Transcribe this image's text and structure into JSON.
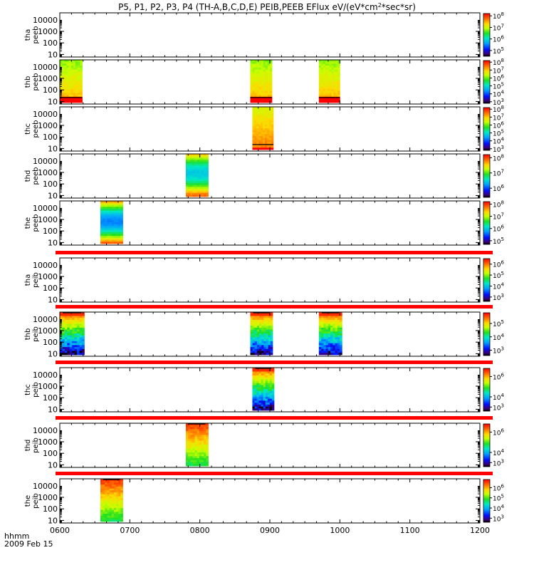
{
  "chart_data": {
    "type": "heatmap",
    "title": "P5, P1, P2, P3, P4 (TH-A,B,C,D,E) PEIB,PEEB EFlux eV/(eV*cm",
    "title_sup": "2",
    "title_end": "*sec*sr)",
    "x_label_top": "hhmm",
    "x_label_bottom": "2009 Feb 15",
    "x_ticks": [
      "0600",
      "0700",
      "0800",
      "0900",
      "1000",
      "1100",
      "1200"
    ],
    "x_range_hours": [
      6,
      12
    ],
    "y_scale": "log",
    "y_range": [
      6,
      40000
    ],
    "y_tick_labels": [
      "10",
      "100",
      "1000",
      "10000"
    ],
    "panels": [
      {
        "name": "tha peeb",
        "label_top": "tha",
        "label_bottom": "peeb",
        "cbar_ticks": [
          "10",
          "10",
          "10",
          "10"
        ],
        "cbar_exps": [
          "5",
          "6",
          "7",
          "8"
        ],
        "cbar_range_exp": [
          4.5,
          8.2
        ],
        "blocks": [],
        "top_bar": false
      },
      {
        "name": "thb peeb",
        "label_top": "thb",
        "label_bottom": "peeb",
        "cbar_ticks": [
          "10",
          "10",
          "10",
          "10",
          "10",
          "10"
        ],
        "cbar_exps": [
          "3",
          "4",
          "5",
          "6",
          "7",
          "8"
        ],
        "cbar_range_exp": [
          2.8,
          8.2
        ],
        "blocks": [
          {
            "start": 6.0,
            "end": 6.32,
            "profile": "e_hot"
          },
          {
            "start": 8.72,
            "end": 9.03,
            "profile": "e_hot"
          },
          {
            "start": 9.7,
            "end": 10.0,
            "profile": "e_hot"
          }
        ],
        "top_bar": false
      },
      {
        "name": "thc peeb",
        "label_top": "thc",
        "label_bottom": "peeb",
        "cbar_ticks": [
          "10",
          "10",
          "10",
          "10",
          "10",
          "10"
        ],
        "cbar_exps": [
          "3",
          "4",
          "5",
          "6",
          "7",
          "8"
        ],
        "cbar_range_exp": [
          2.8,
          8.2
        ],
        "blocks": [
          {
            "start": 8.75,
            "end": 9.05,
            "profile": "e_warm"
          }
        ],
        "top_bar": false
      },
      {
        "name": "thd peeb",
        "label_top": "thd",
        "label_bottom": "peeb",
        "cbar_ticks": [
          "10",
          "10",
          "10"
        ],
        "cbar_exps": [
          "6",
          "7",
          "8"
        ],
        "cbar_range_exp": [
          5.4,
          8.2
        ],
        "blocks": [
          {
            "start": 7.8,
            "end": 8.12,
            "profile": "e_cool"
          }
        ],
        "top_bar": false
      },
      {
        "name": "the peeb",
        "label_top": "the",
        "label_bottom": "peeb",
        "cbar_ticks": [
          "10",
          "10",
          "10",
          "10"
        ],
        "cbar_exps": [
          "5",
          "6",
          "7",
          "8"
        ],
        "cbar_range_exp": [
          4.7,
          8.2
        ],
        "blocks": [
          {
            "start": 6.58,
            "end": 6.9,
            "profile": "e_cool2"
          }
        ],
        "top_bar": false
      },
      {
        "name": "tha peib",
        "label_top": "tha",
        "label_bottom": "peib",
        "cbar_ticks": [
          "10",
          "10",
          "10",
          "10"
        ],
        "cbar_exps": [
          "3",
          "4",
          "5",
          "6"
        ],
        "cbar_range_exp": [
          2.6,
          6.5
        ],
        "blocks": [],
        "top_bar": true
      },
      {
        "name": "thb peib",
        "label_top": "thb",
        "label_bottom": "peib",
        "cbar_ticks": [
          "10",
          "10",
          "10"
        ],
        "cbar_exps": [
          "3",
          "4",
          "5"
        ],
        "cbar_range_exp": [
          2.6,
          5.8
        ],
        "blocks": [
          {
            "start": 6.0,
            "end": 6.35,
            "profile": "ion"
          },
          {
            "start": 8.72,
            "end": 9.04,
            "profile": "ion"
          },
          {
            "start": 9.7,
            "end": 10.03,
            "profile": "ion"
          }
        ],
        "top_bar": true
      },
      {
        "name": "thc peib",
        "label_top": "thc",
        "label_bottom": "peib",
        "cbar_ticks": [
          "10",
          "10",
          "10"
        ],
        "cbar_exps": [
          "3",
          "4",
          "6"
        ],
        "cbar_range_exp": [
          2.6,
          6.8
        ],
        "blocks": [
          {
            "start": 8.75,
            "end": 9.06,
            "profile": "ion"
          }
        ],
        "top_bar": true
      },
      {
        "name": "thd peib",
        "label_top": "thd",
        "label_bottom": "peib",
        "cbar_ticks": [
          "10",
          "10",
          "10"
        ],
        "cbar_exps": [
          "3",
          "4",
          "6"
        ],
        "cbar_range_exp": [
          2.6,
          6.8
        ],
        "blocks": [
          {
            "start": 7.8,
            "end": 8.12,
            "profile": "ion_warm"
          }
        ],
        "top_bar": true
      },
      {
        "name": "the peib",
        "label_top": "the",
        "label_bottom": "peib",
        "cbar_ticks": [
          "10",
          "10",
          "10",
          "10"
        ],
        "cbar_exps": [
          "3",
          "4",
          "5",
          "6"
        ],
        "cbar_range_exp": [
          2.6,
          6.8
        ],
        "blocks": [
          {
            "start": 6.58,
            "end": 6.9,
            "profile": "ion_warm"
          }
        ],
        "top_bar": true
      }
    ]
  }
}
